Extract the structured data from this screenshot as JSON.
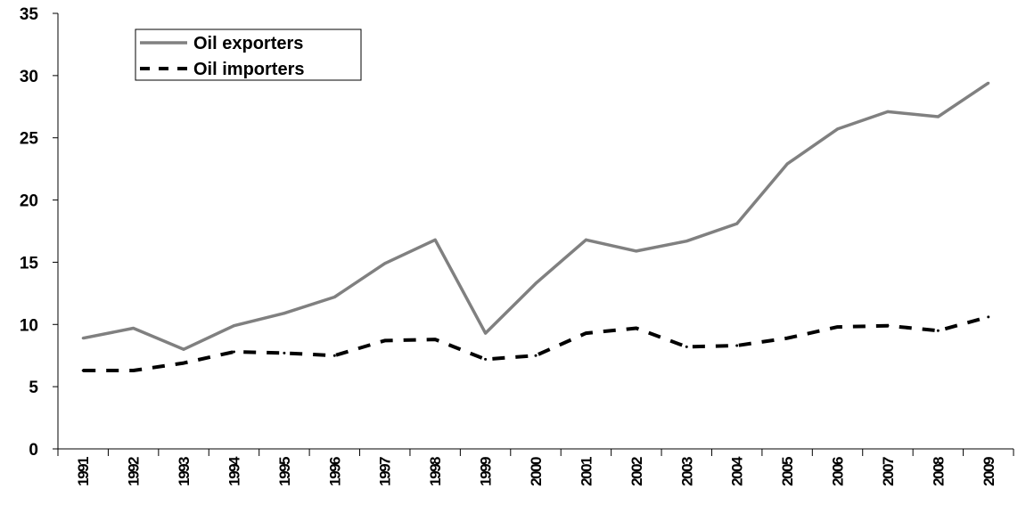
{
  "chart_data": {
    "type": "line",
    "title": "",
    "xlabel": "",
    "ylabel": "",
    "ylim": [
      0,
      35
    ],
    "yticks": [
      "0",
      "5",
      "10",
      "15",
      "20",
      "25",
      "30",
      "35"
    ],
    "categories": [
      "1991",
      "1992",
      "1993",
      "1994",
      "1995",
      "1996",
      "1997",
      "1998",
      "1999",
      "2000",
      "2001",
      "2002",
      "2003",
      "2004",
      "2005",
      "2006",
      "2007",
      "2008",
      "2009"
    ],
    "grid": false,
    "legend_position": "top-left",
    "series": [
      {
        "name": "Oil exporters",
        "style": "solid",
        "color": "#808080",
        "values": [
          8.9,
          9.7,
          8.0,
          9.9,
          10.9,
          12.2,
          14.9,
          16.8,
          9.3,
          13.3,
          16.8,
          15.9,
          16.7,
          18.1,
          22.9,
          25.7,
          27.1,
          26.7,
          29.4
        ]
      },
      {
        "name": "Oil importers",
        "style": "dashed",
        "color": "#000000",
        "values": [
          6.3,
          6.3,
          6.9,
          7.8,
          7.7,
          7.5,
          8.7,
          8.8,
          7.2,
          7.5,
          9.3,
          9.7,
          8.2,
          8.3,
          8.9,
          9.8,
          9.9,
          9.5,
          10.6
        ]
      }
    ]
  }
}
